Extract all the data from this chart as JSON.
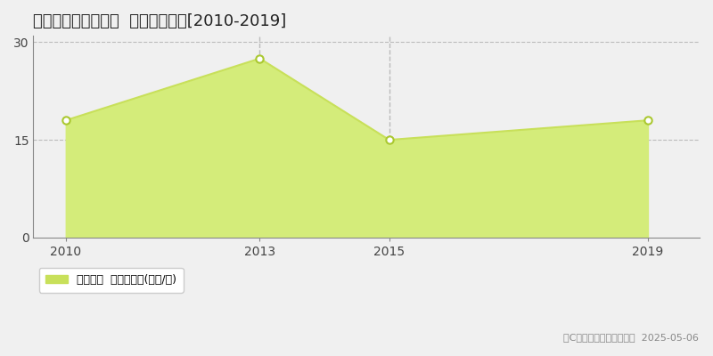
{
  "title": "各務原市那加甥田町  土地価格推移[2010-2019]",
  "years": [
    2010,
    2013,
    2015,
    2019
  ],
  "values": [
    18.0,
    27.5,
    15.0,
    18.0
  ],
  "xlim": [
    2009.5,
    2019.8
  ],
  "ylim": [
    0,
    31
  ],
  "yticks": [
    0,
    15,
    30
  ],
  "xticks": [
    2010,
    2013,
    2015,
    2019
  ],
  "line_color": "#c8e05a",
  "fill_color": "#d4ec7a",
  "fill_alpha": 1.0,
  "marker_color": "white",
  "marker_edge_color": "#aac830",
  "vline_years": [
    2013,
    2015
  ],
  "vline_color": "#bbbbbb",
  "hgrid_color": "#bbbbbb",
  "bg_color": "#f0f0f0",
  "plot_bg_color": "#f0f0f0",
  "legend_label": "土地価格  平均坪単価(万円/坪)",
  "copyright_text": "（C）土地価格ドットコム  2025-05-06",
  "title_fontsize": 13,
  "tick_fontsize": 10,
  "legend_fontsize": 9,
  "copyright_fontsize": 8
}
